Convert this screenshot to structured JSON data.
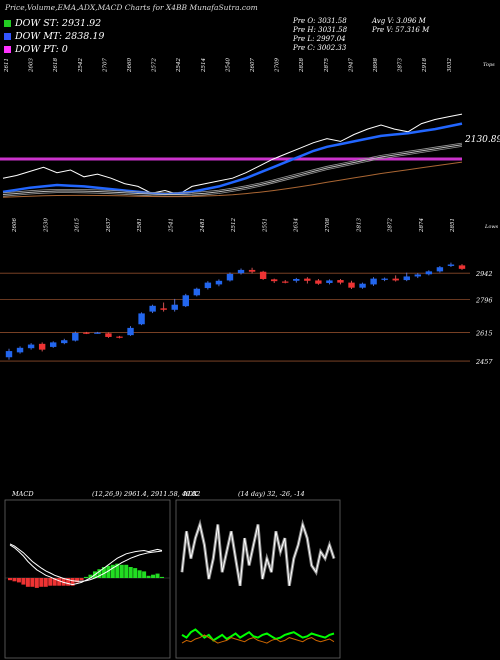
{
  "header": {
    "title": "Price,Volume,EMA,ADX,MACD Charts for X4BB MunafaSutra.com",
    "stats_left": [
      "Pre O: 3031.58",
      "Pre H: 3031.58",
      "Pre L: 2997.04",
      "Pre C: 3002.33"
    ],
    "stats_right": [
      "Avg V: 3.096 M",
      "Pre V: 57.316 M"
    ],
    "legend": [
      {
        "label": "DOW ST: 2931.92",
        "color": "#22cc22"
      },
      {
        "label": "DOW MT: 2838.19",
        "color": "#3355ff"
      },
      {
        "label": "DOW PT: 0",
        "color": "#ff33ff"
      }
    ]
  },
  "chart_data": [
    {
      "type": "line",
      "panel": "EMA / long term",
      "x_labels": [
        "2611",
        "2603",
        "2618",
        "2542",
        "2707",
        "2660",
        "2572",
        "2542",
        "2514",
        "2540",
        "2607",
        "2709",
        "2828",
        "2875",
        "2947",
        "2898",
        "2873",
        "2918",
        "3032"
      ],
      "value_label": "2130.89",
      "corner_label": "Tops",
      "horizontal_line_color": "#cc33cc",
      "series": [
        {
          "name": "price",
          "color": "#ffffff",
          "values": [
            2560,
            2580,
            2610,
            2640,
            2600,
            2620,
            2570,
            2590,
            2560,
            2520,
            2500,
            2450,
            2470,
            2440,
            2500,
            2520,
            2540,
            2560,
            2600,
            2650,
            2700,
            2740,
            2780,
            2820,
            2850,
            2830,
            2880,
            2920,
            2950,
            2920,
            2900,
            2960,
            2990,
            3010,
            3030
          ]
        },
        {
          "name": "ema",
          "color": "#2266ff",
          "values": [
            2460,
            2475,
            2490,
            2500,
            2510,
            2505,
            2500,
            2490,
            2480,
            2470,
            2460,
            2450,
            2445,
            2450,
            2460,
            2480,
            2500,
            2530,
            2560,
            2600,
            2640,
            2680,
            2720,
            2760,
            2790,
            2810,
            2830,
            2850,
            2870,
            2880,
            2890,
            2905,
            2920,
            2940,
            2960
          ]
        },
        {
          "name": "ema-mid",
          "color": "#bbbbbb",
          "values": [
            2440,
            2448,
            2456,
            2462,
            2466,
            2466,
            2465,
            2462,
            2458,
            2453,
            2448,
            2443,
            2440,
            2440,
            2443,
            2450,
            2460,
            2475,
            2492,
            2512,
            2535,
            2560,
            2585,
            2610,
            2635,
            2655,
            2675,
            2695,
            2715,
            2730,
            2745,
            2760,
            2775,
            2790,
            2805
          ]
        },
        {
          "name": "ema-long",
          "color": "#aa6633",
          "values": [
            2420,
            2424,
            2428,
            2431,
            2433,
            2434,
            2434,
            2433,
            2432,
            2430,
            2428,
            2426,
            2425,
            2425,
            2426,
            2429,
            2433,
            2439,
            2447,
            2457,
            2469,
            2482,
            2497,
            2513,
            2530,
            2546,
            2562,
            2578,
            2594,
            2608,
            2622,
            2636,
            2650,
            2664,
            2678
          ]
        }
      ]
    },
    {
      "type": "candlestick",
      "panel": "price / short term",
      "x_labels": [
        "2606",
        "2530",
        "2615",
        "2637",
        "2581",
        "2541",
        "2481",
        "2512",
        "2551",
        "2634",
        "2708",
        "2813",
        "2872",
        "2874",
        "2851"
      ],
      "corner_label": "Lows",
      "y_labels": [
        2942,
        2796,
        2615,
        2457
      ],
      "ylim": [
        2380,
        3070
      ],
      "candles": [
        {
          "o": 2478,
          "c": 2512,
          "h": 2525,
          "l": 2465
        },
        {
          "o": 2505,
          "c": 2530,
          "h": 2538,
          "l": 2498
        },
        {
          "o": 2528,
          "c": 2548,
          "h": 2556,
          "l": 2520
        },
        {
          "o": 2552,
          "c": 2520,
          "h": 2560,
          "l": 2510
        },
        {
          "o": 2535,
          "c": 2560,
          "h": 2566,
          "l": 2530
        },
        {
          "o": 2556,
          "c": 2572,
          "h": 2580,
          "l": 2550
        },
        {
          "o": 2570,
          "c": 2612,
          "h": 2620,
          "l": 2565
        },
        {
          "o": 2614,
          "c": 2610,
          "h": 2618,
          "l": 2606
        },
        {
          "o": 2612,
          "c": 2614,
          "h": 2618,
          "l": 2608
        },
        {
          "o": 2610,
          "c": 2590,
          "h": 2614,
          "l": 2585
        },
        {
          "o": 2592,
          "c": 2588,
          "h": 2596,
          "l": 2582
        },
        {
          "o": 2600,
          "c": 2640,
          "h": 2650,
          "l": 2596
        },
        {
          "o": 2660,
          "c": 2720,
          "h": 2726,
          "l": 2655
        },
        {
          "o": 2730,
          "c": 2762,
          "h": 2768,
          "l": 2722
        },
        {
          "o": 2748,
          "c": 2740,
          "h": 2780,
          "l": 2730
        },
        {
          "o": 2740,
          "c": 2768,
          "h": 2800,
          "l": 2730
        },
        {
          "o": 2760,
          "c": 2820,
          "h": 2828,
          "l": 2755
        },
        {
          "o": 2820,
          "c": 2856,
          "h": 2862,
          "l": 2814
        },
        {
          "o": 2860,
          "c": 2890,
          "h": 2898,
          "l": 2852
        },
        {
          "o": 2880,
          "c": 2900,
          "h": 2908,
          "l": 2870
        },
        {
          "o": 2902,
          "c": 2938,
          "h": 2946,
          "l": 2896
        },
        {
          "o": 2942,
          "c": 2960,
          "h": 2968,
          "l": 2935
        },
        {
          "o": 2960,
          "c": 2950,
          "h": 2972,
          "l": 2940
        },
        {
          "o": 2950,
          "c": 2910,
          "h": 2955,
          "l": 2905
        },
        {
          "o": 2908,
          "c": 2898,
          "h": 2912,
          "l": 2888
        },
        {
          "o": 2896,
          "c": 2892,
          "h": 2904,
          "l": 2886
        },
        {
          "o": 2900,
          "c": 2910,
          "h": 2916,
          "l": 2890
        },
        {
          "o": 2912,
          "c": 2900,
          "h": 2920,
          "l": 2885
        },
        {
          "o": 2902,
          "c": 2884,
          "h": 2910,
          "l": 2878
        },
        {
          "o": 2888,
          "c": 2902,
          "h": 2908,
          "l": 2880
        },
        {
          "o": 2904,
          "c": 2890,
          "h": 2910,
          "l": 2880
        },
        {
          "o": 2890,
          "c": 2862,
          "h": 2900,
          "l": 2855
        },
        {
          "o": 2862,
          "c": 2884,
          "h": 2890,
          "l": 2856
        },
        {
          "o": 2880,
          "c": 2912,
          "h": 2920,
          "l": 2872
        },
        {
          "o": 2905,
          "c": 2912,
          "h": 2918,
          "l": 2898
        },
        {
          "o": 2912,
          "c": 2902,
          "h": 2930,
          "l": 2896
        },
        {
          "o": 2904,
          "c": 2924,
          "h": 2945,
          "l": 2898
        },
        {
          "o": 2924,
          "c": 2935,
          "h": 2942,
          "l": 2915
        },
        {
          "o": 2936,
          "c": 2952,
          "h": 2958,
          "l": 2930
        },
        {
          "o": 2952,
          "c": 2975,
          "h": 2982,
          "l": 2946
        },
        {
          "o": 2982,
          "c": 2990,
          "h": 3000,
          "l": 2976
        },
        {
          "o": 2985,
          "c": 2966,
          "h": 2992,
          "l": 2960
        }
      ]
    },
    {
      "type": "line",
      "panel": "MACD",
      "label": "MACD",
      "params": "(12,26,9) 2961.4, 2911.58, 49.82",
      "series": [
        {
          "name": "macd",
          "color": "#ffffff",
          "values": [
            60,
            55,
            48,
            40,
            30,
            22,
            15,
            10,
            5,
            2,
            -2,
            -5,
            -8,
            -10,
            -12,
            -10,
            -8,
            -4,
            0,
            6,
            12,
            18,
            24,
            30,
            36,
            40,
            44,
            46,
            48,
            49,
            50,
            48,
            50,
            52,
            50
          ]
        },
        {
          "name": "signal",
          "color": "#ffffff",
          "values": [
            62,
            58,
            52,
            46,
            38,
            30,
            24,
            18,
            13,
            9,
            5,
            2,
            -1,
            -3,
            -5,
            -6,
            -6,
            -5,
            -3,
            0,
            4,
            8,
            13,
            18,
            23,
            28,
            32,
            36,
            39,
            42,
            44,
            46,
            47,
            48,
            49
          ]
        }
      ],
      "histogram": [
        -2,
        -3,
        -4,
        -6,
        -8,
        -8,
        -9,
        -8,
        -8,
        -7,
        -7,
        -7,
        -7,
        -7,
        -7,
        -4,
        -2,
        1,
        3,
        6,
        8,
        10,
        11,
        12,
        13,
        12,
        12,
        10,
        9,
        7,
        6,
        2,
        3,
        4,
        1
      ]
    },
    {
      "type": "line",
      "panel": "ADX",
      "label": "ADX",
      "params": "(14 day) 32, -26, -14",
      "series": [
        {
          "name": "adx",
          "color": "#ffffff",
          "values": [
            60,
            90,
            70,
            85,
            95,
            80,
            55,
            70,
            95,
            60,
            75,
            90,
            70,
            50,
            85,
            65,
            80,
            95,
            55,
            70,
            60,
            90,
            75,
            85,
            50,
            70,
            80,
            95,
            85,
            65,
            60,
            75,
            70,
            80,
            70
          ]
        },
        {
          "name": "plus-di",
          "color": "#00ff00",
          "values": [
            14,
            12,
            16,
            18,
            15,
            12,
            14,
            10,
            12,
            14,
            11,
            13,
            15,
            12,
            14,
            16,
            13,
            12,
            14,
            15,
            13,
            11,
            12,
            14,
            15,
            16,
            14,
            12,
            13,
            15,
            14,
            13,
            12,
            14,
            15
          ]
        },
        {
          "name": "minus-di",
          "color": "#cc6600",
          "values": [
            8,
            10,
            9,
            11,
            12,
            14,
            12,
            10,
            8,
            9,
            10,
            12,
            11,
            10,
            9,
            11,
            12,
            10,
            9,
            8,
            10,
            11,
            9,
            10,
            12,
            11,
            10,
            9,
            11,
            12,
            10,
            9,
            10,
            11,
            9
          ]
        }
      ],
      "ylim": [
        0,
        110
      ]
    }
  ]
}
